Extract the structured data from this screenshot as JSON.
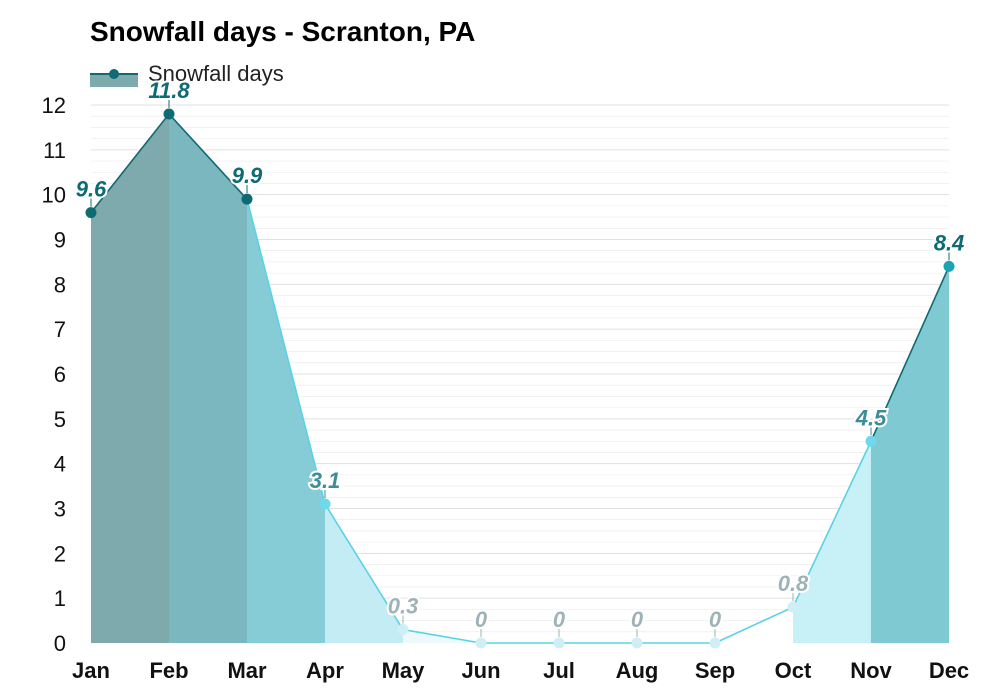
{
  "chart_data": {
    "type": "area",
    "title": "Snowfall days - Scranton, PA",
    "xlabel": "",
    "ylabel": "",
    "categories": [
      "Jan",
      "Feb",
      "Mar",
      "Apr",
      "May",
      "Jun",
      "Jul",
      "Aug",
      "Sep",
      "Oct",
      "Nov",
      "Dec"
    ],
    "series": [
      {
        "name": "Snowfall days",
        "values": [
          9.6,
          11.8,
          9.9,
          3.1,
          0.3,
          0,
          0,
          0,
          0,
          0.8,
          4.5,
          8.4
        ]
      }
    ],
    "data_labels": [
      "9.6",
      "11.8",
      "9.9",
      "3.1",
      "0.3",
      "0",
      "0",
      "0",
      "0",
      "0.8",
      "4.5",
      "8.4"
    ],
    "ylim": [
      0,
      12
    ],
    "yticks": [
      "0",
      "1",
      "2",
      "3",
      "4",
      "5",
      "6",
      "7",
      "8",
      "9",
      "10",
      "11",
      "12"
    ],
    "grid": true,
    "legend": "top-left",
    "colors": {
      "line_dark": "#0f6b73",
      "line_light": "#5ad2e6",
      "point_dark": "#0f6b73",
      "point_mid": "#1aa4b2",
      "point_light": "#6fd8ea",
      "point_pale": "#cfeff6",
      "fill_jan": "#7ea9ad",
      "fill_feb": "#7ab7bf",
      "fill_mar": "#86ccd6",
      "fill_apr": "#c4ecf4",
      "fill_may": "#eef9fc",
      "fill_summer": "#ffffff",
      "fill_oct": "#c8f0f7",
      "fill_nov": "#a2e6f2",
      "fill_dec": "#7fc9d3",
      "label_dark": "#0f6b73",
      "label_mid": "#3c8d98",
      "label_pale": "#9fb3b6",
      "legend_fill": "#7ea9ad",
      "grid": "#e1e1e1"
    }
  }
}
